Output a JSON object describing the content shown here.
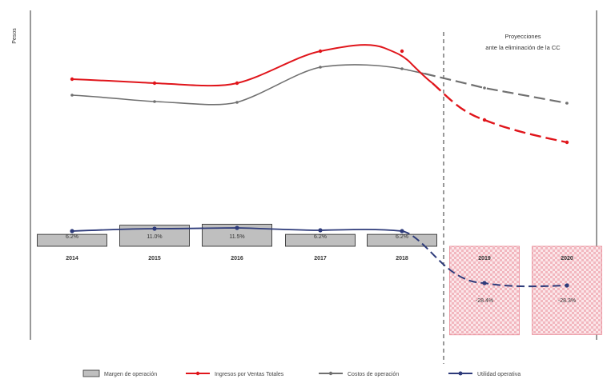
{
  "chart_data": {
    "type": "line",
    "ylabel": "Pesos",
    "annotation": [
      "Proyecciones",
      "ante la eliminación de la CC"
    ],
    "years": [
      "2014",
      "2015",
      "2016",
      "2017",
      "2018",
      "2019",
      "2020"
    ],
    "projection_start": "2019",
    "series": [
      {
        "name": "Margen de operación",
        "kind": "bar",
        "color": "#bfbfbf",
        "labels": [
          "6.2%",
          "11.0%",
          "11.5%",
          "6.2%",
          "6.2%",
          "-28.4%",
          "-28.3%"
        ],
        "values": [
          6.2,
          11.0,
          11.5,
          6.2,
          6.2,
          -28.4,
          -28.3
        ]
      },
      {
        "name": "Ingresos por Ventas Totales",
        "kind": "line",
        "color": "#e0151b"
      },
      {
        "name": "Costos de operación",
        "kind": "line",
        "color": "#707070"
      },
      {
        "name": "Utilidad operativa",
        "kind": "line",
        "color": "#2e3b7a"
      }
    ]
  },
  "colors": {
    "revenue": "#e0151b",
    "costs": "#707070",
    "profit": "#2e3b7a",
    "bars": "#bfbfbf",
    "projection_fill": "#f6c9cf"
  }
}
